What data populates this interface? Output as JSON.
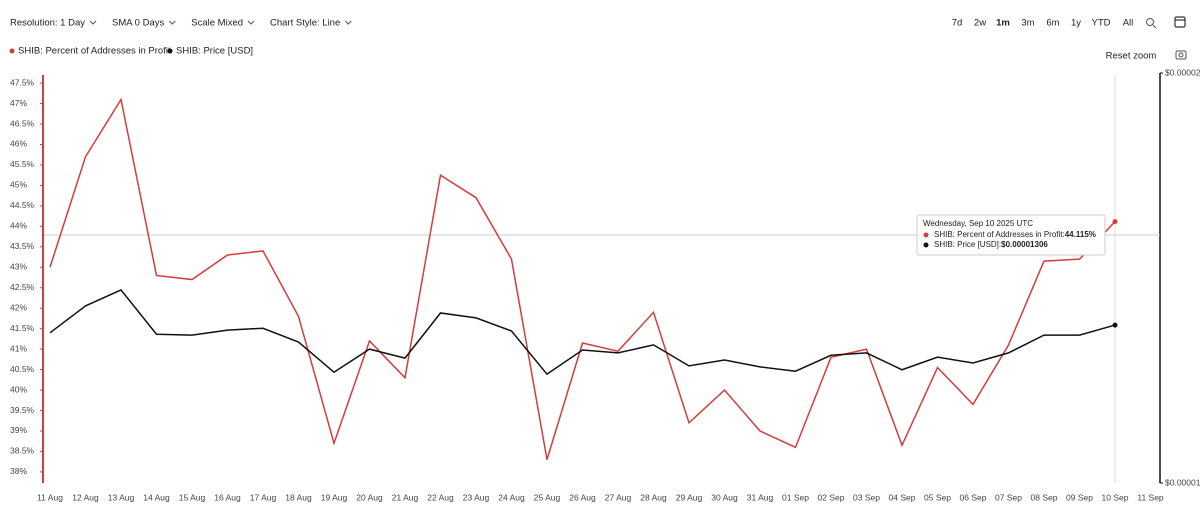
{
  "toolbar": {
    "controls": [
      "Resolution: 1 Day",
      "SMA 0 Days",
      "Scale Mixed",
      "Chart Style: Line"
    ],
    "ranges": [
      "7d",
      "2w",
      "1m",
      "3m",
      "6m",
      "1y",
      "YTD",
      "All"
    ],
    "selected_range": "1m",
    "reset_zoom": "Reset zoom"
  },
  "chart_data": {
    "type": "line",
    "categories": [
      "11 Aug",
      "12 Aug",
      "13 Aug",
      "14 Aug",
      "15 Aug",
      "16 Aug",
      "17 Aug",
      "18 Aug",
      "19 Aug",
      "20 Aug",
      "21 Aug",
      "22 Aug",
      "23 Aug",
      "24 Aug",
      "25 Aug",
      "26 Aug",
      "27 Aug",
      "28 Aug",
      "29 Aug",
      "30 Aug",
      "31 Aug",
      "01 Sep",
      "02 Sep",
      "03 Sep",
      "04 Sep",
      "05 Sep",
      "06 Sep",
      "07 Sep",
      "08 Sep",
      "09 Sep",
      "10 Sep",
      "11 Sep"
    ],
    "series": [
      {
        "name": "SHIB: Percent of Addresses in Profit",
        "color": "#d63c3c",
        "axis": "y",
        "values": [
          43.0,
          45.7,
          47.1,
          42.8,
          42.7,
          43.3,
          43.4,
          41.8,
          38.7,
          41.2,
          40.3,
          45.25,
          44.7,
          43.2,
          38.3,
          41.15,
          40.95,
          41.9,
          39.2,
          40.0,
          39.0,
          38.6,
          40.8,
          41.0,
          38.65,
          40.55,
          39.65,
          41.1,
          43.15,
          43.2,
          44.115,
          null
        ]
      },
      {
        "name": "SHIB: Price [USD]",
        "color": "#111111",
        "axis": "y2",
        "values": [
          1.289e-05,
          1.349e-05,
          1.386e-05,
          1.286e-05,
          1.284e-05,
          1.295e-05,
          1.299e-05,
          1.269e-05,
          1.206e-05,
          1.254e-05,
          1.235e-05,
          1.333e-05,
          1.322e-05,
          1.293e-05,
          1.202e-05,
          1.252e-05,
          1.246e-05,
          1.263e-05,
          1.219e-05,
          1.231e-05,
          1.217e-05,
          1.208e-05,
          1.241e-05,
          1.246e-05,
          1.211e-05,
          1.237e-05,
          1.225e-05,
          1.246e-05,
          1.284e-05,
          1.284e-05,
          1.306e-05,
          null
        ]
      }
    ],
    "ylim": [
      37.9,
      47.6
    ],
    "yticks": [
      {
        "value": 38,
        "label": "38%"
      },
      {
        "value": 38.5,
        "label": "38.5%"
      },
      {
        "value": 39,
        "label": "39%"
      },
      {
        "value": 39.5,
        "label": "39.5%"
      },
      {
        "value": 40,
        "label": "40%"
      },
      {
        "value": 40.5,
        "label": "40.5%"
      },
      {
        "value": 41,
        "label": "41%"
      },
      {
        "value": 41.5,
        "label": "41.5%"
      },
      {
        "value": 42,
        "label": "42%"
      },
      {
        "value": 42.5,
        "label": "42.5%"
      },
      {
        "value": 43,
        "label": "43%"
      },
      {
        "value": 43.5,
        "label": "43.5%"
      },
      {
        "value": 44,
        "label": "44%"
      },
      {
        "value": 44.5,
        "label": "44.5%"
      },
      {
        "value": 45,
        "label": "45%"
      },
      {
        "value": 45.5,
        "label": "45.5%"
      },
      {
        "value": 46,
        "label": "46%"
      },
      {
        "value": 46.5,
        "label": "46.5%"
      },
      {
        "value": 47,
        "label": "47%"
      },
      {
        "value": 47.5,
        "label": "47.5%"
      }
    ],
    "y2lim": [
      1e-05,
      2e-05
    ],
    "y2scale": "log",
    "y2ticks": [
      {
        "value": 2e-05,
        "label": "$0.00002"
      },
      {
        "value": 1e-05,
        "label": "$0.00001"
      }
    ],
    "legend": "top-left",
    "tooltip": {
      "title": "Wednesday, Sep 10 2025 UTC",
      "items": [
        {
          "name": "SHIB: Percent of Addresses in Profit: ",
          "value": "44.115%"
        },
        {
          "name": "SHIB: Price [USD]: ",
          "value": "$0.00001306"
        }
      ]
    }
  }
}
